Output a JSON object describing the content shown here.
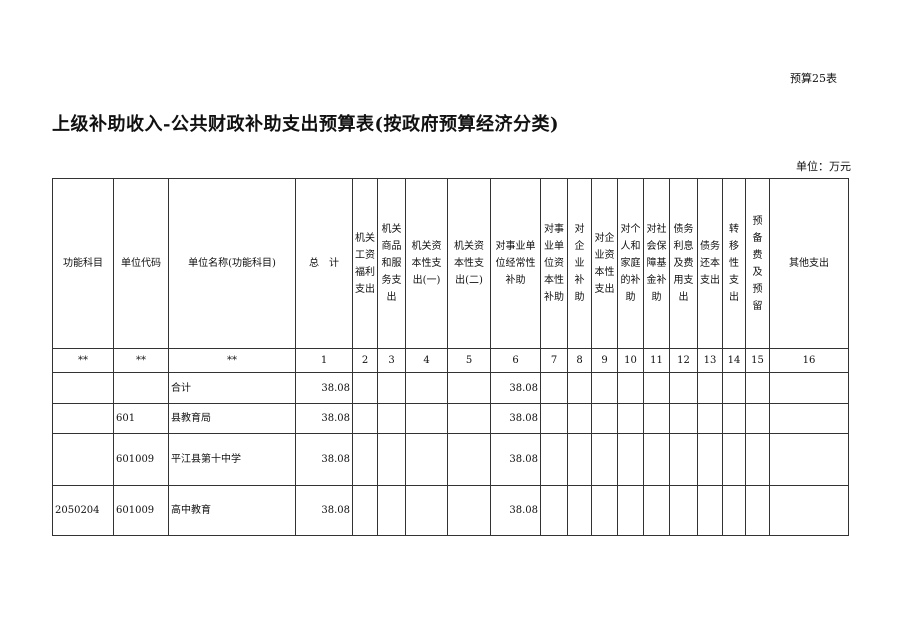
{
  "tag": "预算25表",
  "title": "上级补助收入-公共财政补助支出预算表(按政府预算经济分类)",
  "unit": "单位：万元",
  "headers": [
    "功能科目",
    "单位代码",
    "单位名称(功能科目)",
    "总　计",
    "机关\n工资\n福利\n支出",
    "机关\n商品\n和服\n务支\n出",
    "机关资\n本性支\n出(一)",
    "机关资\n本性支\n出(二)",
    "对事业单\n位经常性\n补助",
    "对事\n业单\n位资\n本性\n补助",
    "对企\n业补\n助",
    "对企\n业资\n本性\n支出",
    "对个\n人和\n家庭\n的补\n助",
    "对社\n会保\n障基\n金补\n助",
    "债务\n利息\n及费\n用支\n出",
    "债务\n还本\n支出",
    "转移\n性支\n出",
    "预备\n费及\n预留",
    "其他支出"
  ],
  "numbers": [
    "**",
    "**",
    "**",
    "1",
    "2",
    "3",
    "4",
    "5",
    "6",
    "7",
    "8",
    "9",
    "10",
    "11",
    "12",
    "13",
    "14",
    "15",
    "16"
  ],
  "rows": [
    {
      "func": "",
      "code": "",
      "name": "合计",
      "total": "38.08",
      "c6": "38.08"
    },
    {
      "func": "",
      "code": "601",
      "name": "县教育局",
      "total": "38.08",
      "c6": "38.08"
    },
    {
      "func": "",
      "code": "601009",
      "name": "平江县第十中学",
      "total": "38.08",
      "c6": "38.08"
    },
    {
      "func": "2050204",
      "code": "601009",
      "name": "高中教育",
      "total": "38.08",
      "c6": "38.08"
    }
  ]
}
